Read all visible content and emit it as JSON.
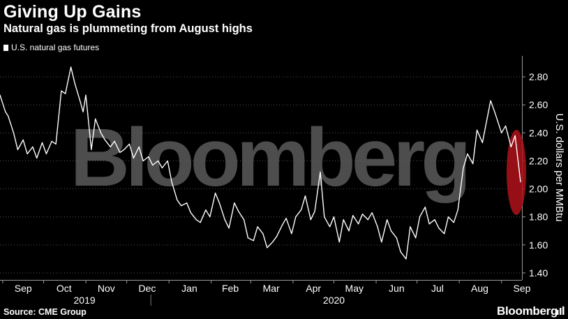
{
  "header": {
    "title": "Giving Up Gains",
    "subtitle": "Natural gas is plummeting from August highs"
  },
  "legend": {
    "label": "U.S. natural gas futures"
  },
  "footer": {
    "source": "Source: CME Group",
    "brand": "Bloomberg",
    "brand_icon": "terminal-logo-icon"
  },
  "watermark": "Bloomberg",
  "colors": {
    "background": "#000000",
    "line": "#ffffff",
    "highlight": "#b0121b",
    "watermark": "#5a5a5a",
    "gridline": "#555555"
  },
  "chart_data": {
    "type": "line",
    "title": "Giving Up Gains",
    "subtitle": "Natural gas is plummeting from August highs",
    "ylabel": "U.S. dollars per MMBtu",
    "xlabel": "",
    "ylim": [
      1.35,
      2.95
    ],
    "y_axis_position": "right",
    "y_ticks": [
      "1.40",
      "1.60",
      "1.80",
      "2.00",
      "2.20",
      "2.40",
      "2.60",
      "2.80"
    ],
    "y_tick_values": [
      1.4,
      1.6,
      1.8,
      2.0,
      2.2,
      2.4,
      2.6,
      2.8
    ],
    "grid": true,
    "legend_position": "top-left",
    "x_ticks": [
      "Sep",
      "Oct",
      "Nov",
      "Dec",
      "Jan",
      "Feb",
      "Mar",
      "Apr",
      "May",
      "Jun",
      "Jul",
      "Aug",
      "Sep"
    ],
    "x_tick_values": [
      "2019-09-01",
      "2019-10-01",
      "2019-11-01",
      "2019-12-01",
      "2020-01-01",
      "2020-02-01",
      "2020-03-01",
      "2020-04-01",
      "2020-05-01",
      "2020-06-01",
      "2020-07-01",
      "2020-08-01",
      "2020-09-01"
    ],
    "year_labels": [
      "2019",
      "2020"
    ],
    "year_label_dates": [
      "2019-10-31",
      "2020-05-01"
    ],
    "series": [
      {
        "name": "U.S. natural gas futures",
        "x": [
          "2019-08-30",
          "2019-09-03",
          "2019-09-05",
          "2019-09-09",
          "2019-09-12",
          "2019-09-16",
          "2019-09-19",
          "2019-09-23",
          "2019-09-26",
          "2019-09-30",
          "2019-10-03",
          "2019-10-07",
          "2019-10-10",
          "2019-10-14",
          "2019-10-17",
          "2019-10-21",
          "2019-10-24",
          "2019-10-28",
          "2019-10-30",
          "2019-11-01",
          "2019-11-05",
          "2019-11-08",
          "2019-11-12",
          "2019-11-15",
          "2019-11-19",
          "2019-11-22",
          "2019-11-26",
          "2019-11-29",
          "2019-12-03",
          "2019-12-06",
          "2019-12-10",
          "2019-12-13",
          "2019-12-17",
          "2019-12-20",
          "2019-12-24",
          "2019-12-27",
          "2019-12-31",
          "2020-01-03",
          "2020-01-07",
          "2020-01-10",
          "2020-01-14",
          "2020-01-17",
          "2020-01-21",
          "2020-01-24",
          "2020-01-28",
          "2020-01-31",
          "2020-02-04",
          "2020-02-07",
          "2020-02-11",
          "2020-02-14",
          "2020-02-18",
          "2020-02-21",
          "2020-02-25",
          "2020-02-28",
          "2020-03-03",
          "2020-03-06",
          "2020-03-10",
          "2020-03-13",
          "2020-03-17",
          "2020-03-20",
          "2020-03-24",
          "2020-03-27",
          "2020-03-31",
          "2020-04-03",
          "2020-04-07",
          "2020-04-10",
          "2020-04-14",
          "2020-04-17",
          "2020-04-21",
          "2020-04-24",
          "2020-04-28",
          "2020-05-01",
          "2020-05-05",
          "2020-05-08",
          "2020-05-12",
          "2020-05-15",
          "2020-05-19",
          "2020-05-22",
          "2020-05-26",
          "2020-05-29",
          "2020-06-02",
          "2020-06-05",
          "2020-06-09",
          "2020-06-12",
          "2020-06-16",
          "2020-06-19",
          "2020-06-23",
          "2020-06-26",
          "2020-06-30",
          "2020-07-03",
          "2020-07-07",
          "2020-07-10",
          "2020-07-14",
          "2020-07-17",
          "2020-07-21",
          "2020-07-24",
          "2020-07-28",
          "2020-07-31",
          "2020-08-04",
          "2020-08-07",
          "2020-08-11",
          "2020-08-14",
          "2020-08-18",
          "2020-08-21",
          "2020-08-24",
          "2020-08-27",
          "2020-09-01",
          "2020-09-04",
          "2020-09-08",
          "2020-09-11",
          "2020-09-15"
        ],
        "values": [
          2.67,
          2.55,
          2.52,
          2.4,
          2.28,
          2.35,
          2.25,
          2.3,
          2.22,
          2.33,
          2.25,
          2.34,
          2.32,
          2.7,
          2.68,
          2.87,
          2.75,
          2.62,
          2.55,
          2.67,
          2.28,
          2.5,
          2.4,
          2.35,
          2.3,
          2.34,
          2.26,
          2.28,
          2.32,
          2.22,
          2.3,
          2.2,
          2.23,
          2.17,
          2.2,
          2.15,
          2.2,
          2.05,
          1.92,
          1.88,
          1.9,
          1.83,
          1.78,
          1.76,
          1.85,
          1.8,
          1.97,
          1.9,
          1.78,
          1.72,
          1.9,
          1.84,
          1.78,
          1.65,
          1.63,
          1.73,
          1.68,
          1.58,
          1.62,
          1.66,
          1.74,
          1.79,
          1.68,
          1.8,
          1.85,
          1.95,
          1.78,
          1.84,
          2.12,
          1.8,
          1.73,
          1.8,
          1.62,
          1.78,
          1.7,
          1.81,
          1.75,
          1.82,
          1.78,
          1.83,
          1.73,
          1.62,
          1.78,
          1.7,
          1.65,
          1.55,
          1.5,
          1.73,
          1.65,
          1.8,
          1.87,
          1.75,
          1.78,
          1.72,
          1.68,
          1.8,
          1.76,
          1.85,
          2.15,
          2.25,
          2.18,
          2.42,
          2.33,
          2.48,
          2.63,
          2.55,
          2.4,
          2.45,
          2.3,
          2.38,
          2.05
        ]
      }
    ]
  }
}
